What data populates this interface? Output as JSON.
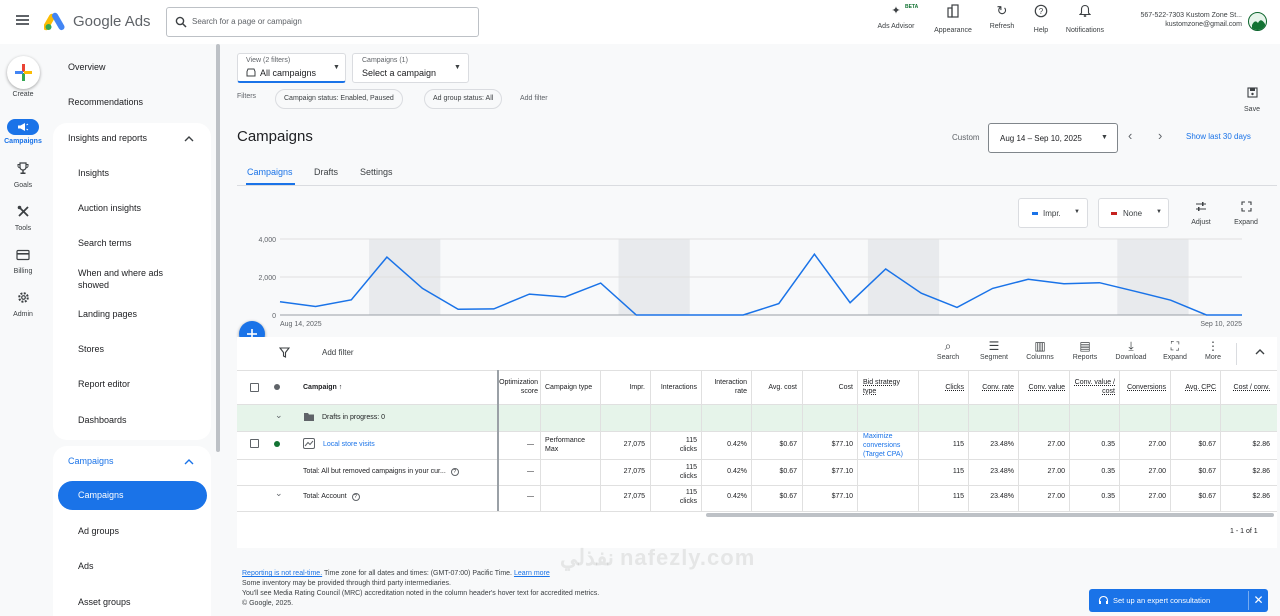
{
  "app": {
    "name": "Google Ads"
  },
  "search": {
    "placeholder": "Search for a page or campaign"
  },
  "header_actions": [
    {
      "label": "Ads Advisor",
      "badge": "BETA",
      "icon": "sparkle-icon"
    },
    {
      "label": "Appearance",
      "icon": "appearance-icon"
    },
    {
      "label": "Refresh",
      "icon": "refresh-icon"
    },
    {
      "label": "Help",
      "icon": "help-icon"
    },
    {
      "label": "Notifications",
      "icon": "bell-icon"
    }
  ],
  "account": {
    "name": "567-522-7303 Kustom Zone St...",
    "email": "kustomzone@gmail.com"
  },
  "rail": [
    {
      "label": "Create",
      "icon": "plus-icon"
    },
    {
      "label": "Campaigns",
      "icon": "megaphone-icon",
      "active": true
    },
    {
      "label": "Goals",
      "icon": "trophy-icon"
    },
    {
      "label": "Tools",
      "icon": "tools-icon"
    },
    {
      "label": "Billing",
      "icon": "card-icon"
    },
    {
      "label": "Admin",
      "icon": "gear-icon"
    }
  ],
  "nav": {
    "overview": "Overview",
    "recommendations": "Recommendations",
    "insights_header": "Insights and reports",
    "insights_items": [
      "Insights",
      "Auction insights",
      "Search terms",
      "When and where ads showed",
      "Landing pages",
      "Stores",
      "Report editor",
      "Dashboards"
    ],
    "campaigns_header": "Campaigns",
    "campaigns_items": [
      "Campaigns",
      "Ad groups",
      "Ads",
      "Asset groups"
    ]
  },
  "selectors": {
    "view_label": "View (2 filters)",
    "view_value": "All campaigns",
    "campaigns_label": "Campaigns (1)",
    "campaigns_value": "Select a campaign"
  },
  "filters": {
    "label": "Filters",
    "chips": [
      "Campaign status: Enabled, Paused",
      "Ad group status: All"
    ],
    "add": "Add filter"
  },
  "save": {
    "label": "Save"
  },
  "page": {
    "title": "Campaigns"
  },
  "date": {
    "custom": "Custom",
    "range": "Aug 14 – Sep 10, 2025",
    "show_last": "Show last 30 days"
  },
  "tabs": [
    "Campaigns",
    "Drafts",
    "Settings"
  ],
  "chart_controls": {
    "metric1": "Impr.",
    "metric2": "None",
    "adjust": "Adjust",
    "expand": "Expand",
    "metric1_color": "#1a73e8",
    "metric2_color": "#c5221f"
  },
  "chart_data": {
    "type": "line",
    "x_start": "Aug 14, 2025",
    "x_end": "Sep 10, 2025",
    "y_ticks": [
      "4,000",
      "2,000",
      "0"
    ],
    "ylim": [
      0,
      4000
    ],
    "shaded_days": [
      3,
      4,
      10,
      11,
      17,
      18,
      24,
      25
    ],
    "series": [
      {
        "values": [
          700,
          450,
          800,
          3050,
          1400,
          300,
          320,
          1100,
          950,
          1680,
          0,
          0,
          0,
          0,
          600,
          3200,
          650,
          2420,
          1150,
          400,
          1400,
          1880,
          1650,
          1700,
          1250,
          780,
          0,
          0
        ]
      }
    ]
  },
  "table_toolbar": {
    "add_filter": "Add filter",
    "buttons": [
      {
        "label": "Search",
        "icon": "search-icon"
      },
      {
        "label": "Segment",
        "icon": "segment-icon"
      },
      {
        "label": "Columns",
        "icon": "columns-icon"
      },
      {
        "label": "Reports",
        "icon": "reports-icon"
      },
      {
        "label": "Download",
        "icon": "download-icon"
      },
      {
        "label": "Expand",
        "icon": "expand-icon"
      },
      {
        "label": "More",
        "icon": "more-icon"
      }
    ]
  },
  "table": {
    "columns": [
      "Campaign",
      "Optimization score",
      "Campaign type",
      "Impr.",
      "Interactions",
      "Interaction rate",
      "Avg. cost",
      "Cost",
      "Bid strategy type",
      "Clicks",
      "Conv. rate",
      "Conv. value",
      "Conv. value / cost",
      "Conversions",
      "Avg. CPC",
      "Cost / conv."
    ],
    "drafts_row": "Drafts in progress: 0",
    "rows": [
      {
        "name": "Local store visits",
        "opt": "—",
        "type": "Performance Max",
        "impr": "27,075",
        "interactions": "115 clicks",
        "rate": "0.42%",
        "avg_cost": "$0.67",
        "cost": "$77.10",
        "bid": "Maximize conversions (Target CPA)",
        "clicks": "115",
        "conv_rate": "23.48%",
        "conv_value": "27.00",
        "value_cost": "0.35",
        "conversions": "27.00",
        "avg_cpc": "$0.67",
        "cost_conv": "$2.86"
      },
      {
        "name": "Total: All but removed campaigns in your cur...",
        "opt": "—",
        "type": "",
        "impr": "27,075",
        "interactions": "115 clicks",
        "rate": "0.42%",
        "avg_cost": "$0.67",
        "cost": "$77.10",
        "bid": "",
        "clicks": "115",
        "conv_rate": "23.48%",
        "conv_value": "27.00",
        "value_cost": "0.35",
        "conversions": "27.00",
        "avg_cpc": "$0.67",
        "cost_conv": "$2.86"
      },
      {
        "name": "Total: Account",
        "opt": "—",
        "type": "",
        "impr": "27,075",
        "interactions": "115 clicks",
        "rate": "0.42%",
        "avg_cost": "$0.67",
        "cost": "$77.10",
        "bid": "",
        "clicks": "115",
        "conv_rate": "23.48%",
        "conv_value": "27.00",
        "value_cost": "0.35",
        "conversions": "27.00",
        "avg_cpc": "$0.67",
        "cost_conv": "$2.86"
      }
    ],
    "pagination": "1 - 1 of 1"
  },
  "footer": {
    "line1_link": "Reporting is not real-time.",
    "line1_text": " Time zone for all dates and times: (GMT-07:00) Pacific Time.",
    "line1_link2": "Learn more",
    "line2": "Some inventory may be provided through third party intermediaries.",
    "line3": "You'll see Media Rating Council (MRC) accreditation noted in the column header's hover text for accredited metrics.",
    "line4": "© Google, 2025."
  },
  "consult": {
    "label": "Set up an expert consultation"
  },
  "watermark": "نفذلي nafezly.com"
}
